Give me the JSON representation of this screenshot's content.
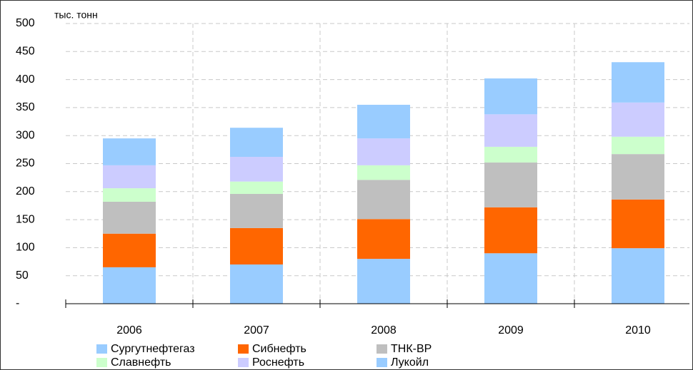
{
  "chart_data": {
    "type": "stacked_bar",
    "y_unit_label": "тыс. тонн",
    "categories": [
      "2006",
      "2007",
      "2008",
      "2009",
      "2010"
    ],
    "series": [
      {
        "name": "Сургутнефтегаз",
        "color": "#99ccff",
        "values": [
          65,
          70,
          80,
          90,
          99
        ]
      },
      {
        "name": "Сибнефть",
        "color": "#ff6600",
        "values": [
          60,
          65,
          71,
          82,
          87
        ]
      },
      {
        "name": "ТНК-ВР",
        "color": "#bfbfbf",
        "values": [
          57,
          61,
          70,
          80,
          81
        ]
      },
      {
        "name": "Славнефть",
        "color": "#ccffcc",
        "values": [
          24,
          22,
          26,
          28,
          31
        ]
      },
      {
        "name": "Роснефть",
        "color": "#ccccff",
        "values": [
          41,
          44,
          48,
          58,
          61
        ]
      },
      {
        "name": "Лукойл",
        "color": "#99ccff",
        "values": [
          48,
          52,
          60,
          64,
          72
        ]
      }
    ],
    "ylim": [
      0,
      500
    ],
    "yticks": [
      {
        "value": 0,
        "label": "-"
      },
      50,
      100,
      150,
      200,
      250,
      300,
      350,
      400,
      450,
      500
    ],
    "grid": true
  }
}
